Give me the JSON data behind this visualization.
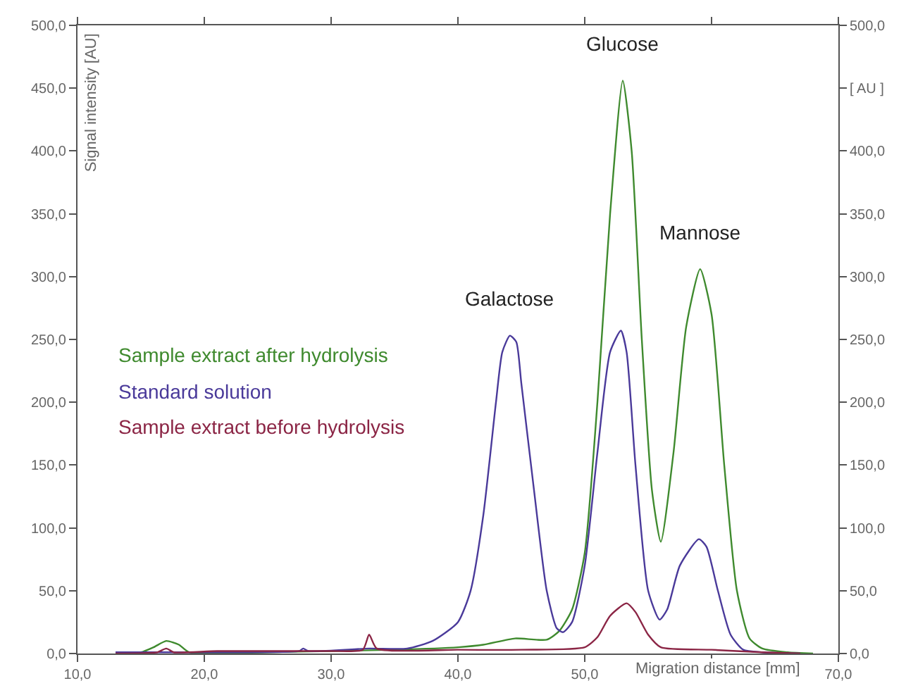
{
  "chart_data": {
    "type": "line",
    "xlabel": "Migration distance [mm]",
    "ylabel": "Signal intensity [AU]",
    "xlim": [
      10,
      70
    ],
    "xticks": [
      {
        "value": 10,
        "label": "10,0"
      },
      {
        "value": 20,
        "label": "20,0"
      },
      {
        "value": 30,
        "label": "30,0"
      },
      {
        "value": 40,
        "label": "40,0"
      },
      {
        "value": 50,
        "label": "50,0"
      },
      {
        "value": 60,
        "label": null
      },
      {
        "value": 70,
        "label": "70,0"
      }
    ],
    "ylim": [
      0,
      500
    ],
    "yticks": [
      {
        "value": 0,
        "label": "0,0"
      },
      {
        "value": 50,
        "label": "50,0"
      },
      {
        "value": 100,
        "label": "100,0"
      },
      {
        "value": 150,
        "label": "150,0"
      },
      {
        "value": 200,
        "label": "200,0"
      },
      {
        "value": 250,
        "label": "250,0"
      },
      {
        "value": 300,
        "label": "300,0"
      },
      {
        "value": 350,
        "label": "350,0"
      },
      {
        "value": 400,
        "label": "400,0"
      },
      {
        "value": 450,
        "label": "450,0"
      },
      {
        "value": 500,
        "label": "500,0"
      }
    ],
    "y2lim": [
      0,
      500
    ],
    "y2ticks": [
      {
        "value": 0,
        "label": "0,0"
      },
      {
        "value": 50,
        "label": "50,0"
      },
      {
        "value": 100,
        "label": "100,0"
      },
      {
        "value": 150,
        "label": "150,0"
      },
      {
        "value": 200,
        "label": "200,0"
      },
      {
        "value": 250,
        "label": "250,0"
      },
      {
        "value": 300,
        "label": "300,0"
      },
      {
        "value": 350,
        "label": "350,0"
      },
      {
        "value": 400,
        "label": "400,0"
      },
      {
        "value": 450,
        "label": "[ AU ]"
      },
      {
        "value": 500,
        "label": "500,0"
      }
    ],
    "legend": false,
    "marker": "none",
    "line_style": "solid",
    "annotations": [
      {
        "text": "Galactose",
        "x": 44.1,
        "y": 253
      },
      {
        "text": "Glucose",
        "x": 53,
        "y": 456
      },
      {
        "text": "Mannose",
        "x": 59.1,
        "y": 306
      }
    ],
    "series": [
      {
        "name": "Sample extract after hydrolysis",
        "color": "#3f8a2e",
        "x": [
          13,
          15,
          16,
          17,
          18,
          18.8,
          25,
          30,
          35,
          40,
          42,
          44.5,
          47,
          48,
          49,
          50,
          51,
          52,
          53,
          53.7,
          54.5,
          55.3,
          56,
          57,
          58,
          59.1,
          60,
          61,
          62,
          63,
          64,
          66,
          68
        ],
        "values": [
          1,
          1,
          5,
          10,
          7,
          1,
          1,
          2,
          3,
          5,
          7,
          12,
          11,
          18,
          35,
          80,
          200,
          350,
          456,
          400,
          250,
          130,
          89,
          160,
          260,
          306,
          270,
          150,
          50,
          12,
          4,
          1,
          0
        ]
      },
      {
        "name": "Standard solution",
        "color": "#4a3a9a",
        "x": [
          13,
          20,
          27.5,
          27.8,
          28.2,
          33,
          36,
          38,
          40,
          41,
          42,
          43,
          43.5,
          44.1,
          44.6,
          45,
          46,
          47,
          47.8,
          48.3,
          49,
          50,
          51,
          52,
          52.85,
          53.3,
          54,
          55,
          55.9,
          56.5,
          57.5,
          59,
          59.6,
          60.5,
          61.5,
          62.5,
          64,
          67
        ],
        "values": [
          1,
          1,
          2,
          4,
          2,
          4,
          4,
          10,
          25,
          50,
          110,
          200,
          240,
          253,
          248,
          215,
          130,
          50,
          20,
          17,
          25,
          70,
          160,
          240,
          257,
          240,
          150,
          50,
          27,
          35,
          70,
          91,
          85,
          50,
          15,
          3,
          1,
          0
        ]
      },
      {
        "name": "Sample extract before hydrolysis",
        "color": "#8b2545",
        "x": [
          13,
          16.3,
          17,
          17.6,
          21,
          30,
          32.5,
          33,
          33.6,
          40,
          45,
          50,
          51,
          52,
          53.3,
          54,
          55,
          56,
          60,
          64,
          67
        ],
        "values": [
          0,
          1,
          4,
          1,
          2,
          2,
          3,
          15,
          4,
          3,
          3,
          5,
          13,
          30,
          40,
          33,
          15,
          5,
          3,
          1,
          0
        ]
      }
    ]
  }
}
